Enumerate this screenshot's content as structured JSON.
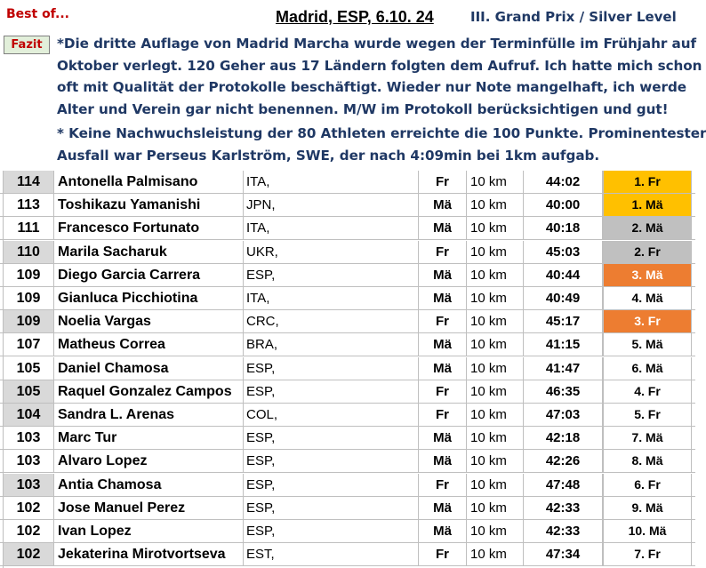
{
  "header": {
    "best_of": "Best of...",
    "event": "Madrid, ESP, 6.10. 24",
    "level": "III. Grand Prix / Silver Level",
    "fazit_label": "Fazit"
  },
  "note": {
    "lines_1": [
      "*Die dritte Auflage von Madrid Marcha wurde wegen der Terminfülle im Frühjahr auf",
      "Oktober verlegt. 120 Geher aus 17 Ländern folgten dem Aufruf. Ich hatte mich schon",
      "oft mit Qualität der Protokolle beschäftigt. Wieder nur Note mangelhaft, ich werde",
      "Alter und Verein gar nicht benennen. M/W im Protokoll berücksichtigen und gut!"
    ],
    "lines_2": [
      "* Keine Nachwuchsleistung der 80 Athleten erreichte die 100 Punkte. Prominentester",
      "Ausfall war Perseus Karlström, SWE, der nach 4:09min bei 1km aufgab."
    ]
  },
  "colors": {
    "gold": "#ffc000",
    "silver": "#c0c0c0",
    "bronze": "#ed7d31",
    "grey_points": "#d9d9d9",
    "note_text": "#1f3864",
    "best_of_text": "#c00000",
    "fazit_bg": "#e2efda"
  },
  "results": [
    {
      "points": "114",
      "name": "Antonella Palmisano",
      "nat": "ITA,",
      "sex": "Fr",
      "dist": "10 km",
      "time": "44:02",
      "rank": "1. Fr",
      "medal": "gold",
      "grey": true
    },
    {
      "points": "113",
      "name": "Toshikazu Yamanishi",
      "nat": "JPN,",
      "sex": "Mä",
      "dist": "10 km",
      "time": "40:00",
      "rank": "1. Mä",
      "medal": "gold",
      "grey": false
    },
    {
      "points": "111",
      "name": "Francesco Fortunato",
      "nat": "ITA,",
      "sex": "Mä",
      "dist": "10 km",
      "time": "40:18",
      "rank": "2. Mä",
      "medal": "silver",
      "grey": false
    },
    {
      "points": "110",
      "name": "Marila Sacharuk",
      "nat": "UKR,",
      "sex": "Fr",
      "dist": "10 km",
      "time": "45:03",
      "rank": "2. Fr",
      "medal": "silver",
      "grey": true
    },
    {
      "points": "109",
      "name": "Diego Garcia Carrera",
      "nat": "ESP,",
      "sex": "Mä",
      "dist": "10 km",
      "time": "40:44",
      "rank": "3. Mä",
      "medal": "bronze",
      "grey": false
    },
    {
      "points": "109",
      "name": "Gianluca Picchiotina",
      "nat": "ITA,",
      "sex": "Mä",
      "dist": "10 km",
      "time": "40:49",
      "rank": "4. Mä",
      "medal": "",
      "grey": false
    },
    {
      "points": "109",
      "name": "Noelia Vargas",
      "nat": "CRC,",
      "sex": "Fr",
      "dist": "10 km",
      "time": "45:17",
      "rank": "3. Fr",
      "medal": "bronze",
      "grey": true
    },
    {
      "points": "107",
      "name": "Matheus Correa",
      "nat": "BRA,",
      "sex": "Mä",
      "dist": "10 km",
      "time": "41:15",
      "rank": "5. Mä",
      "medal": "",
      "grey": false
    },
    {
      "points": "105",
      "name": "Daniel Chamosa",
      "nat": "ESP,",
      "sex": "Mä",
      "dist": "10 km",
      "time": "41:47",
      "rank": "6. Mä",
      "medal": "",
      "grey": false
    },
    {
      "points": "105",
      "name": "Raquel Gonzalez Campos",
      "nat": "ESP,",
      "sex": "Fr",
      "dist": "10 km",
      "time": "46:35",
      "rank": "4. Fr",
      "medal": "",
      "grey": true
    },
    {
      "points": "104",
      "name": "Sandra L. Arenas",
      "nat": "COL,",
      "sex": "Fr",
      "dist": "10 km",
      "time": "47:03",
      "rank": "5. Fr",
      "medal": "",
      "grey": true
    },
    {
      "points": "103",
      "name": "Marc Tur",
      "nat": "ESP,",
      "sex": "Mä",
      "dist": "10 km",
      "time": "42:18",
      "rank": "7. Mä",
      "medal": "",
      "grey": false
    },
    {
      "points": "103",
      "name": "Alvaro Lopez",
      "nat": "ESP,",
      "sex": "Mä",
      "dist": "10 km",
      "time": "42:26",
      "rank": "8. Mä",
      "medal": "",
      "grey": false
    },
    {
      "points": "103",
      "name": "Antia Chamosa",
      "nat": "ESP,",
      "sex": "Fr",
      "dist": "10 km",
      "time": "47:48",
      "rank": "6. Fr",
      "medal": "",
      "grey": true
    },
    {
      "points": "102",
      "name": "Jose Manuel Perez",
      "nat": "ESP,",
      "sex": "Mä",
      "dist": "10 km",
      "time": "42:33",
      "rank": "9. Mä",
      "medal": "",
      "grey": false
    },
    {
      "points": "102",
      "name": "Ivan Lopez",
      "nat": "ESP,",
      "sex": "Mä",
      "dist": "10 km",
      "time": "42:33",
      "rank": "10. Mä",
      "medal": "",
      "grey": false
    },
    {
      "points": "102",
      "name": "Jekaterina Mirotvortseva",
      "nat": "EST,",
      "sex": "Fr",
      "dist": "10 km",
      "time": "47:34",
      "rank": "7. Fr",
      "medal": "",
      "grey": true
    }
  ]
}
